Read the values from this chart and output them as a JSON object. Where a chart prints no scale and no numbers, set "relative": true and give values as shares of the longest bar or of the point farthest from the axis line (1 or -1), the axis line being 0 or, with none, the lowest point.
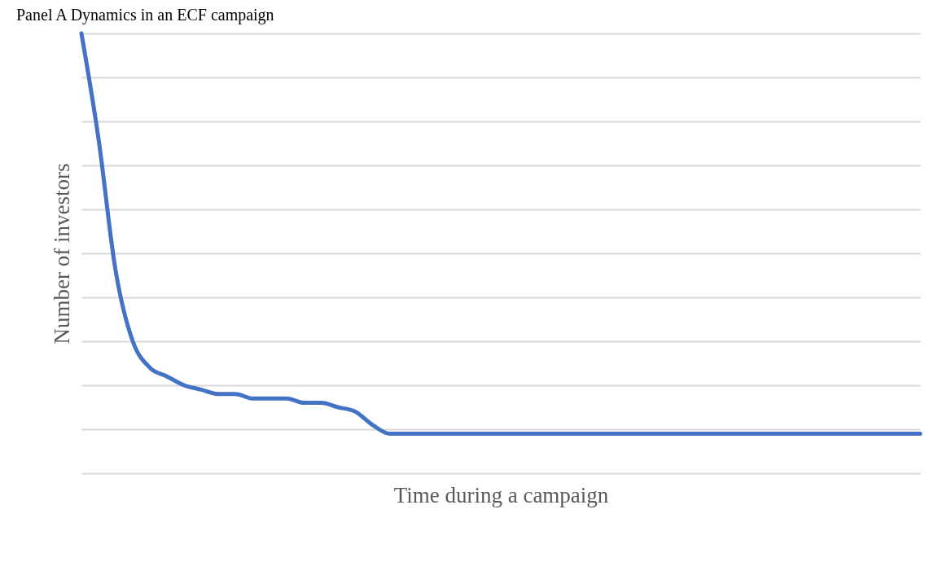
{
  "chart_data": {
    "type": "line",
    "title": "Panel A Dynamics in an ECF campaign",
    "xlabel": "Time during a campaign",
    "ylabel": "Number of investors",
    "relative": true,
    "grid": "y",
    "marker": "none",
    "line_style": "solid",
    "categories": [
      null,
      null,
      null,
      null,
      null,
      null,
      null,
      null,
      null,
      null,
      null,
      null,
      null,
      null,
      null,
      null,
      null,
      null,
      null,
      null,
      null,
      null,
      null,
      null,
      null,
      null,
      null,
      null,
      null,
      null,
      null,
      null,
      null,
      null,
      null,
      null,
      null,
      null,
      null,
      null,
      null,
      null,
      null,
      null,
      null,
      null,
      null,
      null,
      null,
      null
    ],
    "series": [
      {
        "color": "#4472c4",
        "values": [
          1.0,
          0.76,
          0.46,
          0.3,
          0.24,
          0.22,
          0.2,
          0.19,
          0.18,
          0.18,
          0.17,
          0.17,
          0.17,
          0.16,
          0.16,
          0.15,
          0.14,
          0.11,
          0.09,
          0.09,
          0.09,
          0.09,
          0.09,
          0.09,
          0.09,
          0.09,
          0.09,
          0.09,
          0.09,
          0.09,
          0.09,
          0.09,
          0.09,
          0.09,
          0.09,
          0.09,
          0.09,
          0.09,
          0.09,
          0.09,
          0.09,
          0.09,
          0.09,
          0.09,
          0.09,
          0.09,
          0.09,
          0.09,
          0.09,
          0.09
        ]
      }
    ]
  }
}
